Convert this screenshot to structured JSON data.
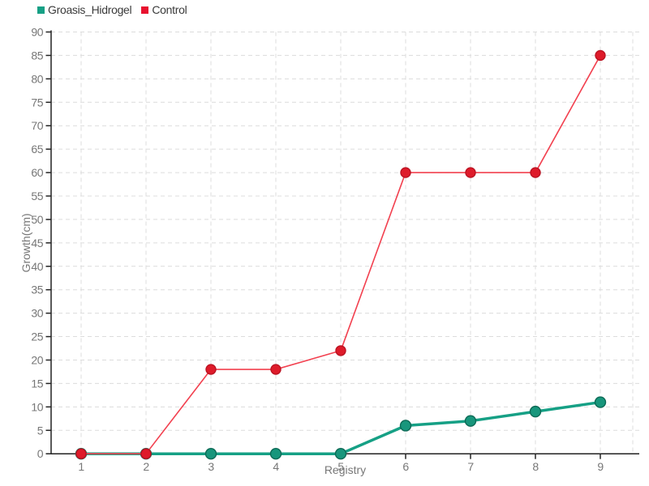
{
  "legend": {
    "items": [
      {
        "label": "Groasis_Hidrogel",
        "color": "#16a085"
      },
      {
        "label": "Control",
        "color": "#e8112f"
      }
    ]
  },
  "chart_data": {
    "type": "line",
    "x": [
      1,
      2,
      3,
      4,
      5,
      6,
      7,
      8,
      9
    ],
    "series": [
      {
        "name": "Groasis_Hidrogel",
        "values": [
          0,
          0,
          0,
          0,
          0,
          6,
          7,
          9,
          11
        ],
        "line_color": "#16a085",
        "line_width": 3.5,
        "marker_fill": "#18967c",
        "marker_stroke": "#0d6a56",
        "marker_radius": 6.5
      },
      {
        "name": "Control",
        "values": [
          0,
          0,
          18,
          18,
          22,
          60,
          60,
          60,
          85
        ],
        "line_color": "#f2404f",
        "line_width": 1.6,
        "marker_fill": "#de1b2a",
        "marker_stroke": "#bb1322",
        "marker_radius": 6
      }
    ],
    "title": "",
    "xlabel": "Registry",
    "ylabel": "Growth(cm)",
    "x_ticks": [
      1,
      2,
      3,
      4,
      5,
      6,
      7,
      8,
      9
    ],
    "y_ticks": [
      0,
      5,
      10,
      15,
      20,
      25,
      30,
      35,
      40,
      45,
      50,
      55,
      60,
      65,
      70,
      75,
      80,
      85,
      90
    ],
    "ylim": [
      0,
      90
    ],
    "grid": true,
    "grid_style": "dashed",
    "legend_position": "top-left"
  },
  "style": {
    "background": "#ffffff",
    "grid_color": "#dcdcdc",
    "axis_color": "#222222",
    "tick_label_color": "#777777",
    "axis_title_color": "#777777",
    "legend_text_color": "#3a3a3a"
  }
}
